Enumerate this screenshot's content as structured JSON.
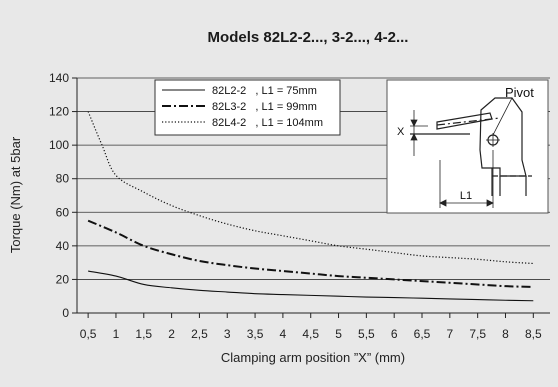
{
  "chart_data": {
    "type": "line",
    "title": "Models 82L2-2..., 3-2..., 4-2...",
    "xlabel": "Clamping arm position ”X” (mm)",
    "ylabel": "Torque (Nm) at 5bar",
    "x_ticks": [
      "0,5",
      "1",
      "1,5",
      "2",
      "2,5",
      "3",
      "3,5",
      "4",
      "4,5",
      "5",
      "5,5",
      "6",
      "6,5",
      "7",
      "7,5",
      "8",
      "8,5"
    ],
    "y_ticks": [
      "0",
      "20",
      "40",
      "60",
      "80",
      "100",
      "120",
      "140"
    ],
    "xlim": [
      0.3,
      8.8
    ],
    "ylim": [
      0,
      140
    ],
    "grid": "horizontal",
    "legend_position": "top-center",
    "series": [
      {
        "name": "82L2-2   , L1 = 75mm",
        "style": "solid",
        "x": [
          0.5,
          1,
          1.5,
          2,
          2.5,
          3,
          3.5,
          4,
          4.5,
          5,
          5.5,
          6,
          6.5,
          7,
          7.5,
          8,
          8.5
        ],
        "values": [
          25,
          22,
          17,
          15,
          13.5,
          12.5,
          11.5,
          11,
          10.5,
          10,
          9.5,
          9.2,
          8.8,
          8.4,
          8,
          7.6,
          7.3
        ]
      },
      {
        "name": "82L3-2   , L1 = 99mm",
        "style": "dashdot",
        "x": [
          0.5,
          1,
          1.5,
          2,
          2.5,
          3,
          3.5,
          4,
          4.5,
          5,
          5.5,
          6,
          6.5,
          7,
          7.5,
          8,
          8.5
        ],
        "values": [
          55,
          48,
          40,
          35,
          31,
          28.5,
          26.5,
          25,
          23.5,
          22,
          21,
          20,
          19,
          18,
          17,
          16,
          15.5
        ]
      },
      {
        "name": "82L4-2   , L1 = 104mm",
        "style": "dotted",
        "x": [
          0.5,
          0.75,
          1,
          1.5,
          2,
          2.5,
          3,
          3.5,
          4,
          4.5,
          5,
          5.5,
          6,
          6.5,
          7,
          7.5,
          8,
          8.5
        ],
        "values": [
          120,
          100,
          82,
          72,
          64,
          58,
          53,
          49,
          46,
          43,
          40,
          38,
          36,
          34,
          33,
          32,
          30.5,
          29.5
        ]
      }
    ],
    "inset": {
      "pivot_label": "Pivot",
      "x_label": "X",
      "l1_label": "L1"
    }
  }
}
